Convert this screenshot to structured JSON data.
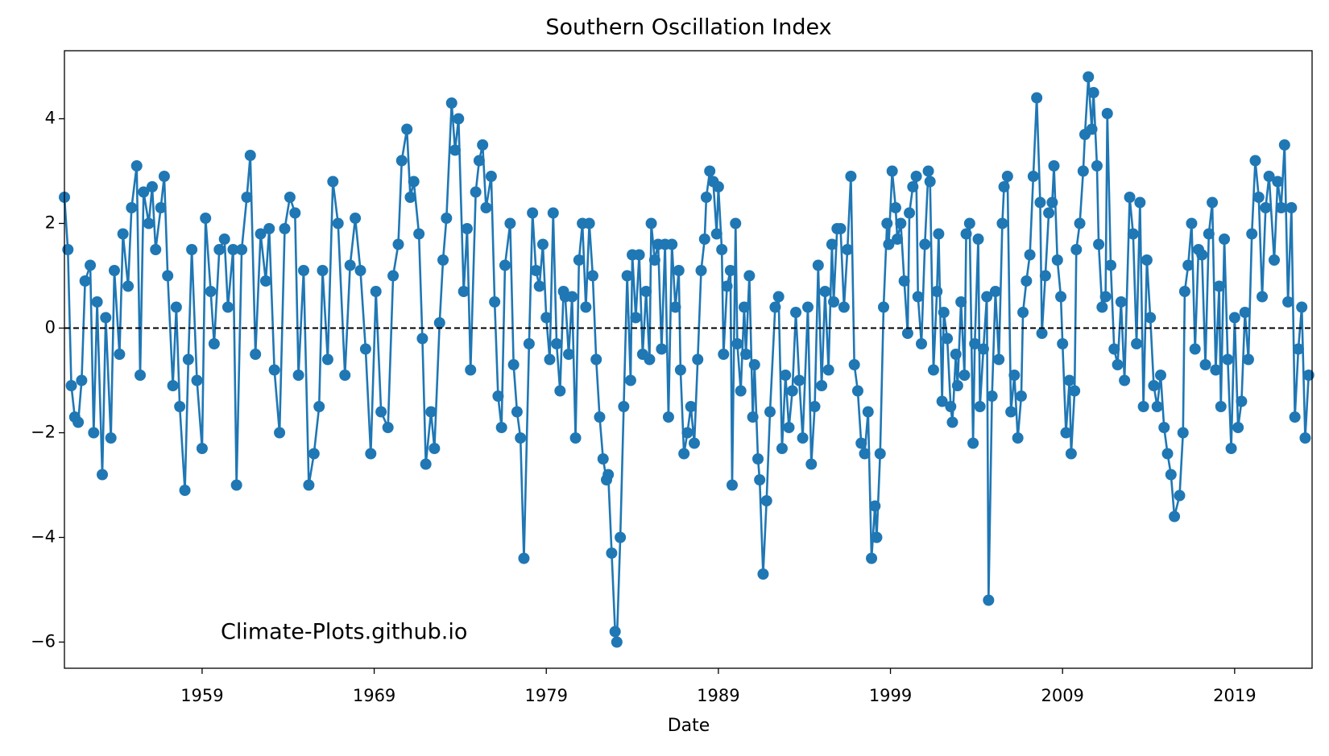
{
  "chart_data": {
    "type": "line",
    "title": "Southern Oscillation Index",
    "xlabel": "Date",
    "annotation": "Climate-Plots.github.io",
    "color": "#1f77b4",
    "markers": true,
    "hline": 0,
    "xlim": [
      1951.0,
      2023.5
    ],
    "xticks": [
      1959,
      1969,
      1979,
      1989,
      1999,
      2009,
      2019
    ],
    "ylim": [
      -6.5,
      5.3
    ],
    "yticks": [
      {
        "value": -6,
        "label": "−6"
      },
      {
        "value": -4,
        "label": "−4"
      },
      {
        "value": -2,
        "label": "−2"
      },
      0,
      2,
      4
    ],
    "x": [
      1951.0,
      1951.2,
      1951.4,
      1951.6,
      1951.8,
      1952.0,
      1952.2,
      1952.5,
      1952.7,
      1952.9,
      1953.2,
      1953.4,
      1953.7,
      1953.9,
      1954.2,
      1954.4,
      1954.7,
      1954.9,
      1955.2,
      1955.4,
      1955.6,
      1955.9,
      1956.1,
      1956.3,
      1956.6,
      1956.8,
      1957.0,
      1957.3,
      1957.5,
      1957.7,
      1958.0,
      1958.2,
      1958.4,
      1958.7,
      1959.0,
      1959.2,
      1959.5,
      1959.7,
      1960.0,
      1960.3,
      1960.5,
      1960.8,
      1961.0,
      1961.3,
      1961.6,
      1961.8,
      1962.1,
      1962.4,
      1962.7,
      1962.9,
      1963.2,
      1963.5,
      1963.8,
      1964.1,
      1964.4,
      1964.6,
      1964.9,
      1965.2,
      1965.5,
      1965.8,
      1966.0,
      1966.3,
      1966.6,
      1966.9,
      1967.3,
      1967.6,
      1967.9,
      1968.2,
      1968.5,
      1968.8,
      1969.1,
      1969.4,
      1969.8,
      1970.1,
      1970.4,
      1970.6,
      1970.9,
      1971.1,
      1971.3,
      1971.6,
      1971.8,
      1972.0,
      1972.3,
      1972.5,
      1972.8,
      1973.0,
      1973.2,
      1973.5,
      1973.7,
      1973.9,
      1974.2,
      1974.4,
      1974.6,
      1974.9,
      1975.1,
      1975.3,
      1975.5,
      1975.8,
      1976.0,
      1976.2,
      1976.4,
      1976.6,
      1976.9,
      1977.1,
      1977.3,
      1977.5,
      1977.7,
      1978.0,
      1978.2,
      1978.4,
      1978.6,
      1978.8,
      1979.0,
      1979.2,
      1979.4,
      1979.6,
      1979.8,
      1980.0,
      1980.1,
      1980.3,
      1980.5,
      1980.7,
      1980.9,
      1981.1,
      1981.3,
      1981.5,
      1981.7,
      1981.9,
      1982.1,
      1982.3,
      1982.5,
      1982.6,
      1982.8,
      1983.0,
      1983.1,
      1983.3,
      1983.5,
      1983.7,
      1983.9,
      1984.0,
      1984.2,
      1984.4,
      1984.6,
      1984.8,
      1985.0,
      1985.1,
      1985.3,
      1985.5,
      1985.7,
      1985.9,
      1986.1,
      1986.3,
      1986.5,
      1986.7,
      1986.8,
      1987.0,
      1987.2,
      1987.4,
      1987.6,
      1987.8,
      1988.0,
      1988.2,
      1988.3,
      1988.5,
      1988.7,
      1988.9,
      1989.0,
      1989.2,
      1989.3,
      1989.5,
      1989.7,
      1989.8,
      1990.0,
      1990.1,
      1990.3,
      1990.5,
      1990.6,
      1990.8,
      1991.0,
      1991.1,
      1991.3,
      1991.4,
      1991.6,
      1991.8,
      1992.0,
      1992.3,
      1992.5,
      1992.7,
      1992.9,
      1993.1,
      1993.3,
      1993.5,
      1993.7,
      1993.9,
      1994.2,
      1994.4,
      1994.6,
      1994.8,
      1995.0,
      1995.2,
      1995.4,
      1995.6,
      1995.7,
      1995.9,
      1996.1,
      1996.3,
      1996.5,
      1996.7,
      1996.9,
      1997.1,
      1997.3,
      1997.5,
      1997.7,
      1997.9,
      1998.1,
      1998.2,
      1998.4,
      1998.6,
      1998.8,
      1998.9,
      1999.1,
      1999.3,
      1999.4,
      1999.6,
      1999.8,
      2000.0,
      2000.1,
      2000.3,
      2000.5,
      2000.6,
      2000.8,
      2001.0,
      2001.2,
      2001.3,
      2001.5,
      2001.7,
      2001.8,
      2002.0,
      2002.1,
      2002.3,
      2002.5,
      2002.6,
      2002.8,
      2002.9,
      2003.1,
      2003.3,
      2003.4,
      2003.6,
      2003.8,
      2003.9,
      2004.1,
      2004.2,
      2004.4,
      2004.6,
      2004.7,
      2004.9,
      2005.1,
      2005.3,
      2005.5,
      2005.6,
      2005.8,
      2006.0,
      2006.2,
      2006.4,
      2006.6,
      2006.7,
      2006.9,
      2007.1,
      2007.3,
      2007.5,
      2007.7,
      2007.8,
      2008.0,
      2008.2,
      2008.4,
      2008.5,
      2008.7,
      2008.9,
      2009.0,
      2009.2,
      2009.4,
      2009.5,
      2009.7,
      2009.8,
      2010.0,
      2010.2,
      2010.3,
      2010.5,
      2010.7,
      2010.8,
      2011.0,
      2011.1,
      2011.3,
      2011.5,
      2011.6,
      2011.8,
      2012.0,
      2012.2,
      2012.4,
      2012.6,
      2012.9,
      2013.1,
      2013.3,
      2013.5,
      2013.7,
      2013.9,
      2014.1,
      2014.3,
      2014.5,
      2014.7,
      2014.9,
      2015.1,
      2015.3,
      2015.5,
      2015.8,
      2016.0,
      2016.1,
      2016.3,
      2016.5,
      2016.7,
      2016.9,
      2017.1,
      2017.3,
      2017.5,
      2017.7,
      2017.9,
      2018.1,
      2018.2,
      2018.4,
      2018.6,
      2018.8,
      2019.0,
      2019.2,
      2019.4,
      2019.6,
      2019.8,
      2020.0,
      2020.2,
      2020.4,
      2020.6,
      2020.8,
      2021.0,
      2021.3,
      2021.5,
      2021.7,
      2021.9,
      2022.1,
      2022.3,
      2022.5,
      2022.7,
      2022.9,
      2023.1,
      2023.3
    ],
    "values": [
      2.5,
      1.5,
      -1.1,
      -1.7,
      -1.8,
      -1.0,
      0.9,
      1.2,
      -2.0,
      0.5,
      -2.8,
      0.2,
      -2.1,
      1.1,
      -0.5,
      1.8,
      0.8,
      2.3,
      3.1,
      -0.9,
      2.6,
      2.0,
      2.7,
      1.5,
      2.3,
      2.9,
      1.0,
      -1.1,
      0.4,
      -1.5,
      -3.1,
      -0.6,
      1.5,
      -1.0,
      -2.3,
      2.1,
      0.7,
      -0.3,
      1.5,
      1.7,
      0.4,
      1.5,
      -3.0,
      1.5,
      2.5,
      3.3,
      -0.5,
      1.8,
      0.9,
      1.9,
      -0.8,
      -2.0,
      1.9,
      2.5,
      2.2,
      -0.9,
      1.1,
      -3.0,
      -2.4,
      -1.5,
      1.1,
      -0.6,
      2.8,
      2.0,
      -0.9,
      1.2,
      2.1,
      1.1,
      -0.4,
      -2.4,
      0.7,
      -1.6,
      -1.9,
      1.0,
      1.6,
      3.2,
      3.8,
      2.5,
      2.8,
      1.8,
      -0.2,
      -2.6,
      -1.6,
      -2.3,
      0.1,
      1.3,
      2.1,
      4.3,
      3.4,
      4.0,
      0.7,
      1.9,
      -0.8,
      2.6,
      3.2,
      3.5,
      2.3,
      2.9,
      0.5,
      -1.3,
      -1.9,
      1.2,
      2.0,
      -0.7,
      -1.6,
      -2.1,
      -4.4,
      -0.3,
      2.2,
      1.1,
      0.8,
      1.6,
      0.2,
      -0.6,
      2.2,
      -0.3,
      -1.2,
      0.7,
      0.6,
      -0.5,
      0.6,
      -2.1,
      1.3,
      2.0,
      0.4,
      2.0,
      1.0,
      -0.6,
      -1.7,
      -2.5,
      -2.9,
      -2.8,
      -4.3,
      -5.8,
      -6.0,
      -4.0,
      -1.5,
      1.0,
      -1.0,
      1.4,
      0.2,
      1.4,
      -0.5,
      0.7,
      -0.6,
      2.0,
      1.3,
      1.6,
      -0.4,
      1.6,
      -1.7,
      1.6,
      0.4,
      1.1,
      -0.8,
      -2.4,
      -2.0,
      -1.5,
      -2.2,
      -0.6,
      1.1,
      1.7,
      2.5,
      3.0,
      2.8,
      1.8,
      2.7,
      1.5,
      -0.5,
      0.8,
      1.1,
      -3.0,
      2.0,
      -0.3,
      -1.2,
      0.4,
      -0.5,
      1.0,
      -1.7,
      -0.7,
      -2.5,
      -2.9,
      -4.7,
      -3.3,
      -1.6,
      0.4,
      0.6,
      -2.3,
      -0.9,
      -1.9,
      -1.2,
      0.3,
      -1.0,
      -2.1,
      0.4,
      -2.6,
      -1.5,
      1.2,
      -1.1,
      0.7,
      -0.8,
      1.6,
      0.5,
      1.9,
      1.9,
      0.4,
      1.5,
      2.9,
      -0.7,
      -1.2,
      -2.2,
      -2.4,
      -1.6,
      -4.4,
      -3.4,
      -4.0,
      -2.4,
      0.4,
      2.0,
      1.6,
      3.0,
      2.3,
      1.7,
      2.0,
      0.9,
      -0.1,
      2.2,
      2.7,
      2.9,
      0.6,
      -0.3,
      1.6,
      3.0,
      2.8,
      -0.8,
      0.7,
      1.8,
      -1.4,
      0.3,
      -0.2,
      -1.5,
      -1.8,
      -0.5,
      -1.1,
      0.5,
      -0.9,
      1.8,
      2.0,
      -2.2,
      -0.3,
      1.7,
      -1.5,
      -0.4,
      0.6,
      -5.2,
      -1.3,
      0.7,
      -0.6,
      2.0,
      2.7,
      2.9,
      -1.6,
      -0.9,
      -2.1,
      -1.3,
      0.3,
      0.9,
      1.4,
      2.9,
      4.4,
      2.4,
      -0.1,
      1.0,
      2.2,
      2.4,
      3.1,
      1.3,
      0.6,
      -0.3,
      -2.0,
      -1.0,
      -2.4,
      -1.2,
      1.5,
      2.0,
      3.0,
      3.7,
      4.8,
      3.8,
      4.5,
      3.1,
      1.6,
      0.4,
      0.6,
      4.1,
      1.2,
      -0.4,
      -0.7,
      0.5,
      -1.0,
      2.5,
      1.8,
      -0.3,
      2.4,
      -1.5,
      1.3,
      0.2,
      -1.1,
      -1.5,
      -0.9,
      -1.9,
      -2.4,
      -2.8,
      -3.6,
      -3.2,
      -2.0,
      0.7,
      1.2,
      2.0,
      -0.4,
      1.5,
      1.4,
      -0.7,
      1.8,
      2.4,
      -0.8,
      0.8,
      -1.5,
      1.7,
      -0.6,
      -2.3,
      0.2,
      -1.9,
      -1.4,
      0.3,
      -0.6,
      1.8,
      3.2,
      2.5,
      0.6,
      2.3,
      2.9,
      1.3,
      2.8,
      2.3,
      3.5,
      0.5,
      2.3,
      -1.7,
      -0.4,
      0.4,
      -2.1,
      -0.9
    ]
  }
}
